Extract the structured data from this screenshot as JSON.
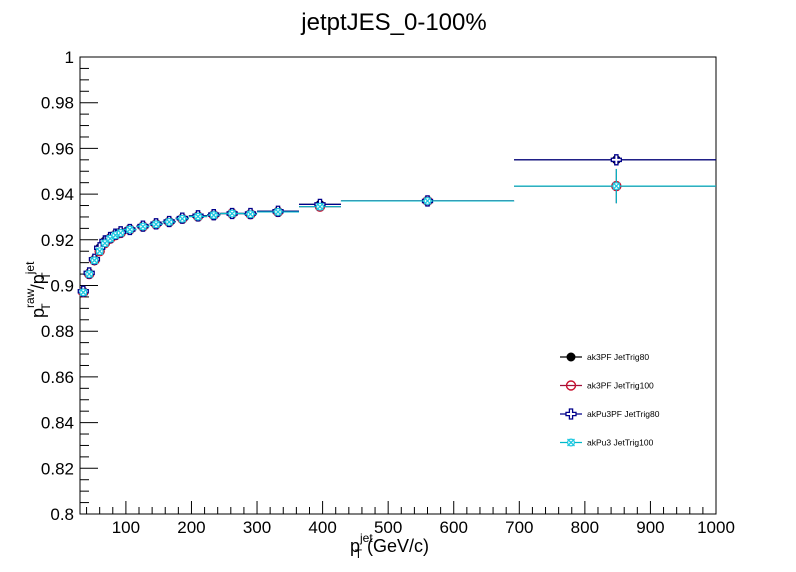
{
  "chart_data": {
    "type": "scatter",
    "title": "jetptJES_0-100%",
    "xlabel": {
      "base": "p",
      "sub": "T",
      "sup": "jet",
      "unit": " (GeV/c)"
    },
    "ylabel": {
      "num_base": "p",
      "num_sub": "T",
      "num_sup": "raw",
      "slash": "/",
      "den_base": "p",
      "den_sub": "T",
      "den_sup": "jet"
    },
    "xlim": [
      30,
      1000
    ],
    "ylim": [
      0.8,
      1.0
    ],
    "x_ticks": [
      "100",
      "200",
      "300",
      "400",
      "500",
      "600",
      "700",
      "800",
      "900",
      "1000"
    ],
    "y_ticks": [
      "0.8",
      "0.82",
      "0.84",
      "0.86",
      "0.88",
      "0.9",
      "0.92",
      "0.94",
      "0.96",
      "0.98",
      "1"
    ],
    "grid": false,
    "legend_position": "bottom-right",
    "series": [
      {
        "name": "ak3PF JetTrig80",
        "marker": "filled-circle",
        "color": "#000000",
        "marker_color": "#000000",
        "points": [
          {
            "x": 35,
            "xlo": 30,
            "xhi": 40,
            "y": 0.8975
          },
          {
            "x": 44,
            "xlo": 40,
            "xhi": 48,
            "y": 0.9055
          },
          {
            "x": 52,
            "xlo": 48,
            "xhi": 56,
            "y": 0.9115
          },
          {
            "x": 60,
            "xlo": 56,
            "xhi": 64,
            "y": 0.9165
          },
          {
            "x": 68,
            "xlo": 64,
            "xhi": 72,
            "y": 0.9195
          },
          {
            "x": 76,
            "xlo": 72,
            "xhi": 80,
            "y": 0.921
          },
          {
            "x": 84,
            "xlo": 80,
            "xhi": 88,
            "y": 0.9225
          },
          {
            "x": 92,
            "xlo": 88,
            "xhi": 96,
            "y": 0.9235
          },
          {
            "x": 106,
            "xlo": 96,
            "xhi": 116,
            "y": 0.9245
          },
          {
            "x": 126,
            "xlo": 116,
            "xhi": 136,
            "y": 0.926
          },
          {
            "x": 146,
            "xlo": 136,
            "xhi": 156,
            "y": 0.927
          },
          {
            "x": 166,
            "xlo": 156,
            "xhi": 176,
            "y": 0.928
          },
          {
            "x": 186,
            "xlo": 176,
            "xhi": 196,
            "y": 0.9295
          },
          {
            "x": 210,
            "xlo": 196,
            "xhi": 224,
            "y": 0.9305
          },
          {
            "x": 234,
            "xlo": 224,
            "xhi": 244,
            "y": 0.931
          },
          {
            "x": 262,
            "xlo": 244,
            "xhi": 280,
            "y": 0.9315
          },
          {
            "x": 290,
            "xlo": 280,
            "xhi": 300,
            "y": 0.9315
          },
          {
            "x": 332,
            "xlo": 300,
            "xhi": 364,
            "y": 0.9325
          },
          {
            "x": 396,
            "xlo": 364,
            "xhi": 428,
            "y": 0.9355
          },
          {
            "x": 560,
            "xlo": 428,
            "xhi": 692,
            "y": 0.937
          },
          {
            "x": 848,
            "xlo": 692,
            "xhi": 1000,
            "y": 0.955
          }
        ]
      },
      {
        "name": "ak3PF JetTrig100",
        "marker": "open-circle",
        "color": "#a0103a",
        "marker_color": "#c8102e",
        "points": [
          {
            "x": 35,
            "xlo": 30,
            "xhi": 40,
            "y": 0.897
          },
          {
            "x": 44,
            "xlo": 40,
            "xhi": 48,
            "y": 0.905
          },
          {
            "x": 52,
            "xlo": 48,
            "xhi": 56,
            "y": 0.911
          },
          {
            "x": 60,
            "xlo": 56,
            "xhi": 64,
            "y": 0.915
          },
          {
            "x": 68,
            "xlo": 64,
            "xhi": 72,
            "y": 0.9185
          },
          {
            "x": 76,
            "xlo": 72,
            "xhi": 80,
            "y": 0.9205
          },
          {
            "x": 84,
            "xlo": 80,
            "xhi": 88,
            "y": 0.922
          },
          {
            "x": 92,
            "xlo": 88,
            "xhi": 96,
            "y": 0.923
          },
          {
            "x": 106,
            "xlo": 96,
            "xhi": 116,
            "y": 0.9245
          },
          {
            "x": 126,
            "xlo": 116,
            "xhi": 136,
            "y": 0.9258
          },
          {
            "x": 146,
            "xlo": 136,
            "xhi": 156,
            "y": 0.9268
          },
          {
            "x": 166,
            "xlo": 156,
            "xhi": 176,
            "y": 0.9278
          },
          {
            "x": 186,
            "xlo": 176,
            "xhi": 196,
            "y": 0.9292
          },
          {
            "x": 210,
            "xlo": 196,
            "xhi": 224,
            "y": 0.9302
          },
          {
            "x": 234,
            "xlo": 224,
            "xhi": 244,
            "y": 0.9308
          },
          {
            "x": 262,
            "xlo": 244,
            "xhi": 280,
            "y": 0.9315
          },
          {
            "x": 290,
            "xlo": 280,
            "xhi": 300,
            "y": 0.9312
          },
          {
            "x": 332,
            "xlo": 300,
            "xhi": 364,
            "y": 0.9322
          },
          {
            "x": 396,
            "xlo": 364,
            "xhi": 428,
            "y": 0.9345
          },
          {
            "x": 560,
            "xlo": 428,
            "xhi": 692,
            "y": 0.937
          },
          {
            "x": 848,
            "xlo": 692,
            "xhi": 1000,
            "y": 0.9435,
            "ylo": 0.936,
            "yhi": 0.951
          }
        ]
      },
      {
        "name": "akPu3PF JetTrig80",
        "marker": "open-cross",
        "color": "#00008b",
        "marker_color": "#00008b",
        "points": [
          {
            "x": 35,
            "xlo": 30,
            "xhi": 40,
            "y": 0.8975
          },
          {
            "x": 44,
            "xlo": 40,
            "xhi": 48,
            "y": 0.9055
          },
          {
            "x": 52,
            "xlo": 48,
            "xhi": 56,
            "y": 0.9115
          },
          {
            "x": 60,
            "xlo": 56,
            "xhi": 64,
            "y": 0.9165
          },
          {
            "x": 68,
            "xlo": 64,
            "xhi": 72,
            "y": 0.9195
          },
          {
            "x": 76,
            "xlo": 72,
            "xhi": 80,
            "y": 0.921
          },
          {
            "x": 84,
            "xlo": 80,
            "xhi": 88,
            "y": 0.9225
          },
          {
            "x": 92,
            "xlo": 88,
            "xhi": 96,
            "y": 0.9235
          },
          {
            "x": 106,
            "xlo": 96,
            "xhi": 116,
            "y": 0.9245
          },
          {
            "x": 126,
            "xlo": 116,
            "xhi": 136,
            "y": 0.926
          },
          {
            "x": 146,
            "xlo": 136,
            "xhi": 156,
            "y": 0.927
          },
          {
            "x": 166,
            "xlo": 156,
            "xhi": 176,
            "y": 0.928
          },
          {
            "x": 186,
            "xlo": 176,
            "xhi": 196,
            "y": 0.9295
          },
          {
            "x": 210,
            "xlo": 196,
            "xhi": 224,
            "y": 0.9305
          },
          {
            "x": 234,
            "xlo": 224,
            "xhi": 244,
            "y": 0.931
          },
          {
            "x": 262,
            "xlo": 244,
            "xhi": 280,
            "y": 0.9315
          },
          {
            "x": 290,
            "xlo": 280,
            "xhi": 300,
            "y": 0.9315
          },
          {
            "x": 332,
            "xlo": 300,
            "xhi": 364,
            "y": 0.9325
          },
          {
            "x": 396,
            "xlo": 364,
            "xhi": 428,
            "y": 0.9355
          },
          {
            "x": 560,
            "xlo": 428,
            "xhi": 692,
            "y": 0.937
          },
          {
            "x": 848,
            "xlo": 692,
            "xhi": 1000,
            "y": 0.955
          }
        ]
      },
      {
        "name": "akPu3 JetTrig100",
        "marker": "open-x",
        "color": "#00b8c8",
        "marker_color": "#1ec8e0",
        "points": [
          {
            "x": 35,
            "xlo": 30,
            "xhi": 40,
            "y": 0.897
          },
          {
            "x": 44,
            "xlo": 40,
            "xhi": 48,
            "y": 0.905
          },
          {
            "x": 52,
            "xlo": 48,
            "xhi": 56,
            "y": 0.911
          },
          {
            "x": 60,
            "xlo": 56,
            "xhi": 64,
            "y": 0.915
          },
          {
            "x": 68,
            "xlo": 64,
            "xhi": 72,
            "y": 0.9185
          },
          {
            "x": 76,
            "xlo": 72,
            "xhi": 80,
            "y": 0.9205
          },
          {
            "x": 84,
            "xlo": 80,
            "xhi": 88,
            "y": 0.922
          },
          {
            "x": 92,
            "xlo": 88,
            "xhi": 96,
            "y": 0.923
          },
          {
            "x": 106,
            "xlo": 96,
            "xhi": 116,
            "y": 0.9245
          },
          {
            "x": 126,
            "xlo": 116,
            "xhi": 136,
            "y": 0.9258
          },
          {
            "x": 146,
            "xlo": 136,
            "xhi": 156,
            "y": 0.9268
          },
          {
            "x": 166,
            "xlo": 156,
            "xhi": 176,
            "y": 0.9278
          },
          {
            "x": 186,
            "xlo": 176,
            "xhi": 196,
            "y": 0.9292
          },
          {
            "x": 210,
            "xlo": 196,
            "xhi": 224,
            "y": 0.9302
          },
          {
            "x": 234,
            "xlo": 224,
            "xhi": 244,
            "y": 0.9308
          },
          {
            "x": 262,
            "xlo": 244,
            "xhi": 280,
            "y": 0.9315
          },
          {
            "x": 290,
            "xlo": 280,
            "xhi": 300,
            "y": 0.9312
          },
          {
            "x": 332,
            "xlo": 300,
            "xhi": 364,
            "y": 0.9322
          },
          {
            "x": 396,
            "xlo": 364,
            "xhi": 428,
            "y": 0.9345
          },
          {
            "x": 560,
            "xlo": 428,
            "xhi": 692,
            "y": 0.937
          },
          {
            "x": 848,
            "xlo": 692,
            "xhi": 1000,
            "y": 0.9435,
            "ylo": 0.936,
            "yhi": 0.951
          }
        ]
      }
    ]
  }
}
